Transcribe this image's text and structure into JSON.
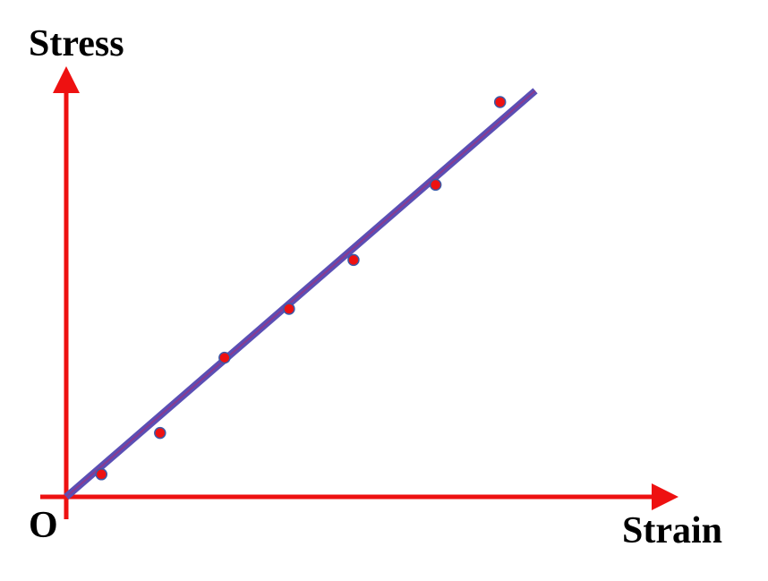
{
  "chart_data": {
    "type": "scatter",
    "ylabel": "Stress",
    "xlabel": "Strain",
    "origin_label": "O",
    "xlim": [
      0,
      10
    ],
    "ylim": [
      0,
      10
    ],
    "points": [
      {
        "x": 0.6,
        "y": 0.6
      },
      {
        "x": 1.6,
        "y": 1.7
      },
      {
        "x": 2.7,
        "y": 3.7
      },
      {
        "x": 3.8,
        "y": 5.0
      },
      {
        "x": 4.9,
        "y": 6.3
      },
      {
        "x": 6.3,
        "y": 8.3
      },
      {
        "x": 7.4,
        "y": 10.5
      }
    ],
    "fit_line": {
      "x0": 0,
      "y0": 0,
      "x1": 8.0,
      "y1": 10.8
    },
    "colors": {
      "axes": "#ee1111",
      "points": "#ee1111",
      "point_outline": "#3b5aa8",
      "line": "#5a4fb5",
      "line_core": "#8a3a8f"
    }
  }
}
